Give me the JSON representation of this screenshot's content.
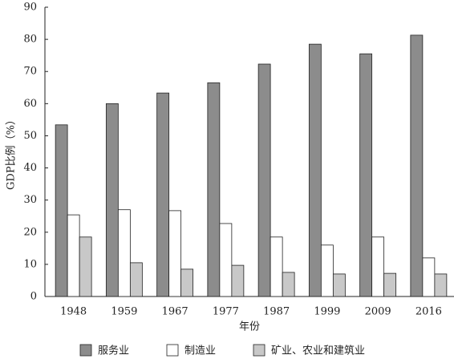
{
  "chart_data": {
    "type": "bar",
    "x_label": "年份",
    "y_label": "GDP比例（%）",
    "categories": [
      "1948",
      "1959",
      "1967",
      "1977",
      "1987",
      "1999",
      "2009",
      "2016"
    ],
    "series": [
      {
        "name": "服务业",
        "color": "#8c8c8c",
        "values": [
          53.4,
          60,
          63.3,
          66.5,
          72.3,
          78.5,
          75.5,
          81.3
        ]
      },
      {
        "name": "制造业",
        "color": "#ffffff",
        "values": [
          25.4,
          27,
          26.7,
          22.7,
          18.5,
          16,
          18.5,
          12
        ]
      },
      {
        "name": "矿业、农业和建筑业",
        "color": "#c8c8c8",
        "values": [
          18.5,
          10.5,
          8.5,
          9.7,
          7.5,
          7,
          7.2,
          7
        ]
      }
    ],
    "ylim": [
      0,
      90
    ],
    "yticks": [
      0,
      10,
      20,
      30,
      40,
      50,
      60,
      70,
      80,
      90
    ],
    "grid": false,
    "legend": "bottom"
  }
}
